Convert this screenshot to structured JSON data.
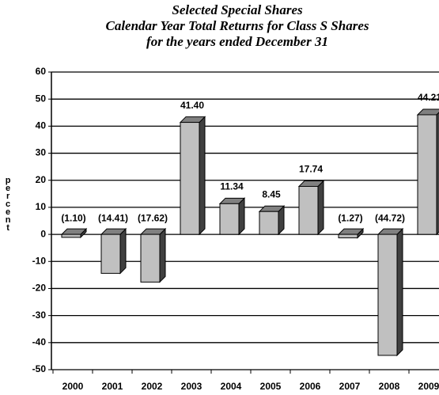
{
  "chart_data": {
    "type": "bar",
    "title": [
      "Selected Special Shares",
      "Calendar Year Total Returns for Class S Shares",
      "for the years ended December 31"
    ],
    "y_label": "percent",
    "categories": [
      "2000",
      "2001",
      "2002",
      "2003",
      "2004",
      "2005",
      "2006",
      "2007",
      "2008",
      "2009"
    ],
    "values": [
      -1.1,
      -14.41,
      -17.62,
      41.4,
      11.34,
      8.45,
      17.74,
      -1.27,
      -44.72,
      44.21
    ],
    "value_labels": [
      "(1.10)",
      "(14.41)",
      "(17.62)",
      "41.40",
      "11.34",
      "8.45",
      "17.74",
      "(1.27)",
      "(44.72)",
      "44.21"
    ],
    "color": "#c0c0c0",
    "ylim": [
      -50,
      60
    ],
    "yticks": [
      -50,
      -40,
      -30,
      -20,
      -10,
      0,
      10,
      20,
      30,
      40,
      50,
      60
    ],
    "grid": true
  }
}
